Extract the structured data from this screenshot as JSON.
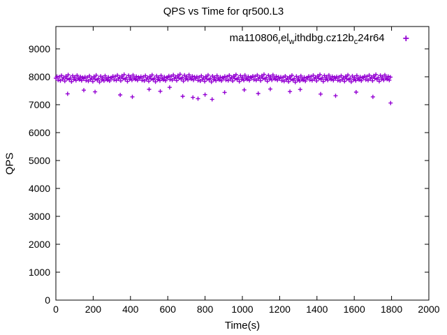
{
  "title": "QPS vs Time for qr500.L3",
  "chart_data": {
    "type": "scatter",
    "title": "QPS vs Time for qr500.L3",
    "xlabel": "Time(s)",
    "ylabel": "QPS",
    "xlim": [
      0,
      2000
    ],
    "ylim": [
      0,
      9800
    ],
    "xticks": [
      0,
      200,
      400,
      600,
      800,
      1000,
      1200,
      1400,
      1600,
      1800,
      2000
    ],
    "yticks": [
      0,
      1000,
      2000,
      3000,
      4000,
      5000,
      6000,
      7000,
      8000,
      9000
    ],
    "grid": false,
    "marker": "plus",
    "marker_color": "#9400d3",
    "legend": {
      "position": "top-right-inside",
      "plain": "ma110806_rel_withdbg.cz12b_c24r64",
      "segments": [
        {
          "text": "ma110806",
          "sub": false
        },
        {
          "text": "r",
          "sub": true
        },
        {
          "text": "el",
          "sub": false
        },
        {
          "text": "w",
          "sub": true
        },
        {
          "text": "ithdbg.cz12b",
          "sub": false
        },
        {
          "text": "c",
          "sub": true
        },
        {
          "text": "24r64",
          "sub": false
        }
      ]
    },
    "series": [
      {
        "name": "ma110806_rel_withdbg.cz12b_c24r64",
        "x_start": 0,
        "x_step": 6,
        "y": [
          7950,
          8010,
          7880,
          7995,
          7860,
          8045,
          7915,
          7970,
          7845,
          8020,
          7930,
          8070,
          7895,
          7955,
          7825,
          8035,
          7905,
          7985,
          7870,
          8050,
          7940,
          7900,
          8000,
          7865,
          7975,
          7935,
          7995,
          7865,
          7980,
          7845,
          8030,
          7900,
          7955,
          7830,
          8005,
          7915,
          8055,
          7880,
          7940,
          7810,
          8020,
          7890,
          7970,
          7855,
          8035,
          7925,
          7885,
          7985,
          7850,
          7960,
          7960,
          8020,
          7890,
          8005,
          7870,
          8055,
          7925,
          7980,
          7855,
          8030,
          7940,
          8080,
          7905,
          7965,
          7835,
          8045,
          7915,
          7995,
          7880,
          8060,
          7950,
          7910,
          8010,
          7875,
          7985,
          7945,
          8005,
          7875,
          7990,
          7855,
          8040,
          7910,
          7965,
          7840,
          8015,
          7925,
          8065,
          7890,
          7950,
          7820,
          8030,
          7900,
          7980,
          7865,
          8045,
          7935,
          7895,
          7995,
          7860,
          7970,
          7970,
          8030,
          7900,
          8015,
          7880,
          8065,
          7935,
          7990,
          7865,
          8040,
          7950,
          8090,
          7915,
          7975,
          7845,
          8055,
          7925,
          8005,
          7890,
          8070,
          7960,
          7920,
          8020,
          7885,
          7995,
          7940,
          8000,
          7870,
          7985,
          7850,
          8035,
          7905,
          7960,
          7835,
          8010,
          7920,
          8060,
          7885,
          7945,
          7815,
          8025,
          7895,
          7975,
          7860,
          8040,
          7930,
          7890,
          7990,
          7855,
          7965,
          7955,
          8015,
          7885,
          8000,
          7865,
          8050,
          7920,
          7975,
          7850,
          8025,
          7935,
          8075,
          7900,
          7960,
          7830,
          8040,
          7910,
          7990,
          7875,
          8055,
          7945,
          7905,
          8005,
          7870,
          7980,
          7965,
          8025,
          7895,
          8010,
          7875,
          8060,
          7930,
          7985,
          7860,
          8035,
          7945,
          8085,
          7910,
          7970,
          7840,
          8050,
          7920,
          8000,
          7885,
          8065,
          7955,
          7915,
          8015,
          7880,
          7990,
          7930,
          7990,
          7860,
          7975,
          7840,
          8025,
          7895,
          7950,
          7825,
          8000,
          7910,
          8050,
          7875,
          7935,
          7805,
          8015,
          7885,
          7965,
          7850,
          8030,
          7920,
          7880,
          7980,
          7845,
          7955,
          7958,
          8018,
          7888,
          8003,
          7868,
          8053,
          7923,
          7978,
          7853,
          8028,
          7938,
          8078,
          7903,
          7963,
          7833,
          8043,
          7913,
          7993,
          7878,
          8058,
          7948,
          7908,
          8008,
          7873,
          7983,
          7942,
          8002,
          7872,
          7987,
          7852,
          8037,
          7907,
          7962,
          7837,
          8012,
          7922,
          8062,
          7887,
          7947,
          7817,
          8027,
          7897,
          7977,
          7862,
          8042,
          7932,
          7892,
          7992,
          7857,
          7967,
          7962,
          8022,
          7892,
          8007,
          7872,
          8057,
          7927,
          7982,
          7857,
          8032,
          7942,
          8082,
          7907,
          7967,
          7837,
          8047,
          7917,
          7997,
          7882,
          8062,
          7952,
          7912,
          8012,
          7877,
          7987
        ],
        "outliers": [
          [
            63,
            7390
          ],
          [
            150,
            7520
          ],
          [
            210,
            7460
          ],
          [
            345,
            7350
          ],
          [
            410,
            7280
          ],
          [
            500,
            7550
          ],
          [
            560,
            7480
          ],
          [
            610,
            7620
          ],
          [
            680,
            7300
          ],
          [
            735,
            7260
          ],
          [
            762,
            7215
          ],
          [
            800,
            7360
          ],
          [
            838,
            7190
          ],
          [
            905,
            7440
          ],
          [
            1010,
            7530
          ],
          [
            1085,
            7400
          ],
          [
            1150,
            7560
          ],
          [
            1255,
            7470
          ],
          [
            1310,
            7545
          ],
          [
            1420,
            7380
          ],
          [
            1500,
            7320
          ],
          [
            1610,
            7450
          ],
          [
            1700,
            7280
          ],
          [
            1795,
            7060
          ]
        ]
      }
    ]
  }
}
